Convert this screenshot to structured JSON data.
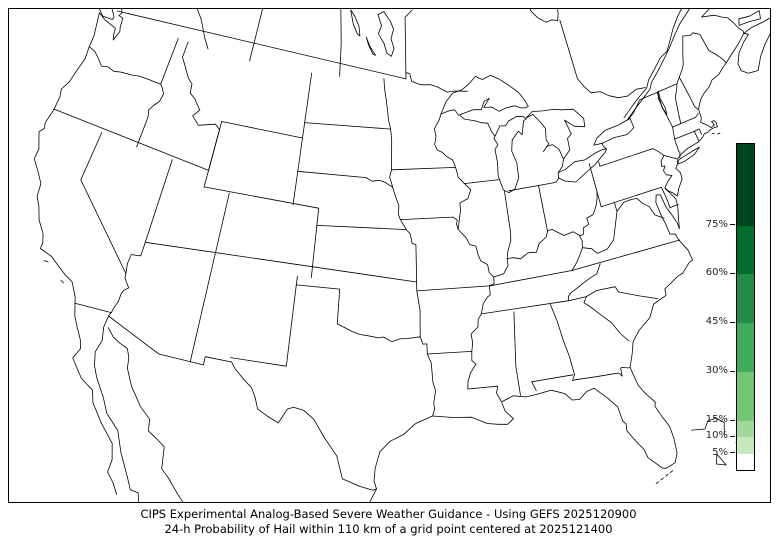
{
  "title": {
    "line1": "CIPS Experimental Analog-Based Severe Weather Guidance - Using GEFS 2025120900",
    "line2": "24-h Probability of Hail within 110 km of a grid point centered at 2025121400"
  },
  "map": {
    "region_shading": "none",
    "line_color": "#000000",
    "background_color": "#ffffff"
  },
  "colorbar": {
    "scale_min": 0,
    "scale_max": 100,
    "ticks": [
      {
        "label": "75%",
        "value": 75
      },
      {
        "label": "60%",
        "value": 60
      },
      {
        "label": "45%",
        "value": 45
      },
      {
        "label": "30%",
        "value": 30
      },
      {
        "label": "15%",
        "value": 15
      },
      {
        "label": "10%",
        "value": 10
      },
      {
        "label": "5%",
        "value": 5
      }
    ],
    "segments": [
      {
        "from": 75,
        "to": 100,
        "color": "#00441b"
      },
      {
        "from": 60,
        "to": 75,
        "color": "#006d2c"
      },
      {
        "from": 45,
        "to": 60,
        "color": "#238b45"
      },
      {
        "from": 30,
        "to": 45,
        "color": "#41ab5d"
      },
      {
        "from": 15,
        "to": 30,
        "color": "#74c476"
      },
      {
        "from": 10,
        "to": 15,
        "color": "#a1d99b"
      },
      {
        "from": 5,
        "to": 10,
        "color": "#c7e9c0"
      },
      {
        "from": 0,
        "to": 5,
        "color": "#ffffff"
      }
    ]
  }
}
